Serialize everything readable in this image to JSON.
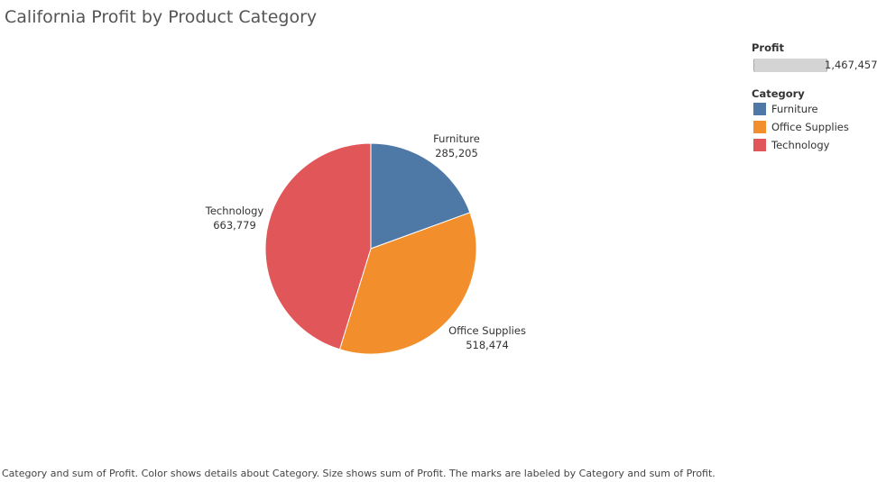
{
  "title": "California Profit by Product Category",
  "legend": {
    "size_heading": "Profit",
    "size_max_label": "1,467,457",
    "color_heading": "Category",
    "items": [
      {
        "label": "Furniture",
        "color": "#4e79a7"
      },
      {
        "label": "Office Supplies",
        "color": "#f28e2b"
      },
      {
        "label": "Technology",
        "color": "#e15759"
      }
    ]
  },
  "chart_data": {
    "type": "pie",
    "title": "California Profit by Product Category",
    "categories": [
      "Furniture",
      "Office Supplies",
      "Technology"
    ],
    "values": [
      285205,
      518474,
      663779
    ],
    "value_labels": [
      "285,205",
      "518,474",
      "663,779"
    ],
    "colors": [
      "#4e79a7",
      "#f28e2b",
      "#e15759"
    ],
    "total": 1467457,
    "legend_position": "top-right"
  },
  "caption": "Category and sum of Profit.  Color shows details about Category.  Size shows sum of Profit.  The marks are labeled by Category and sum of Profit."
}
